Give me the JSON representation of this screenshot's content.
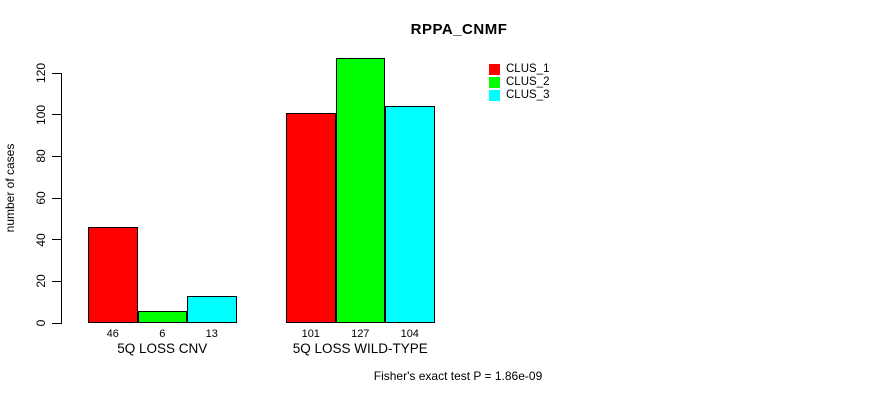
{
  "title": "RPPA_CNMF",
  "y_axis_label": "number of cases",
  "footer_annotation": "Fisher's exact test P = 1.86e-09",
  "chart_data": {
    "type": "bar",
    "title": "RPPA_CNMF",
    "xlabel": "",
    "ylabel": "number of cases",
    "categories": [
      "5Q LOSS CNV",
      "5Q LOSS WILD-TYPE"
    ],
    "series": [
      {
        "name": "CLUS_1",
        "color": "#FF0000",
        "values": [
          46,
          101
        ]
      },
      {
        "name": "CLUS_2",
        "color": "#00FF00",
        "values": [
          6,
          127
        ]
      },
      {
        "name": "CLUS_3",
        "color": "#00FFFF",
        "values": [
          13,
          104
        ]
      }
    ],
    "yticks": [
      0,
      20,
      40,
      60,
      80,
      100,
      120
    ],
    "ylim": [
      0,
      120
    ],
    "grid": false,
    "bar_border_color": "#000000",
    "legend_position": "top-right",
    "annotation": "Fisher's exact test P = 1.86e-09"
  }
}
